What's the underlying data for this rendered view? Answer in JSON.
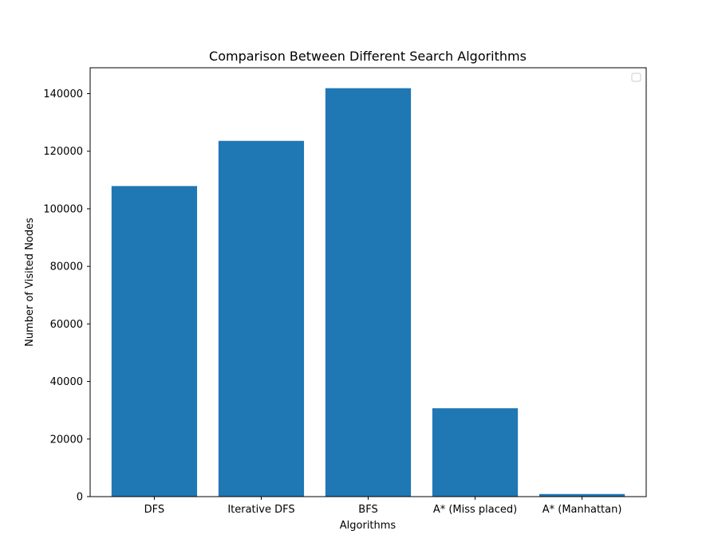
{
  "chart_data": {
    "type": "bar",
    "title": "Comparison Between Different Search Algorithms",
    "xlabel": "Algorithms",
    "ylabel": "Number of Visited Nodes",
    "categories": [
      "DFS",
      "Iterative DFS",
      "BFS",
      "A* (Miss placed)",
      "A* (Manhattan)"
    ],
    "values": [
      107900,
      123600,
      141900,
      30700,
      900
    ],
    "ylim": [
      0,
      149000
    ],
    "yticks": [
      0,
      20000,
      40000,
      60000,
      80000,
      100000,
      120000,
      140000
    ],
    "ytick_labels": [
      "0",
      "20000",
      "40000",
      "60000",
      "80000",
      "100000",
      "120000",
      "140000"
    ],
    "bar_color": "#1f77b4",
    "grid": false,
    "legend": {
      "placement": "top-right",
      "entries": []
    }
  }
}
